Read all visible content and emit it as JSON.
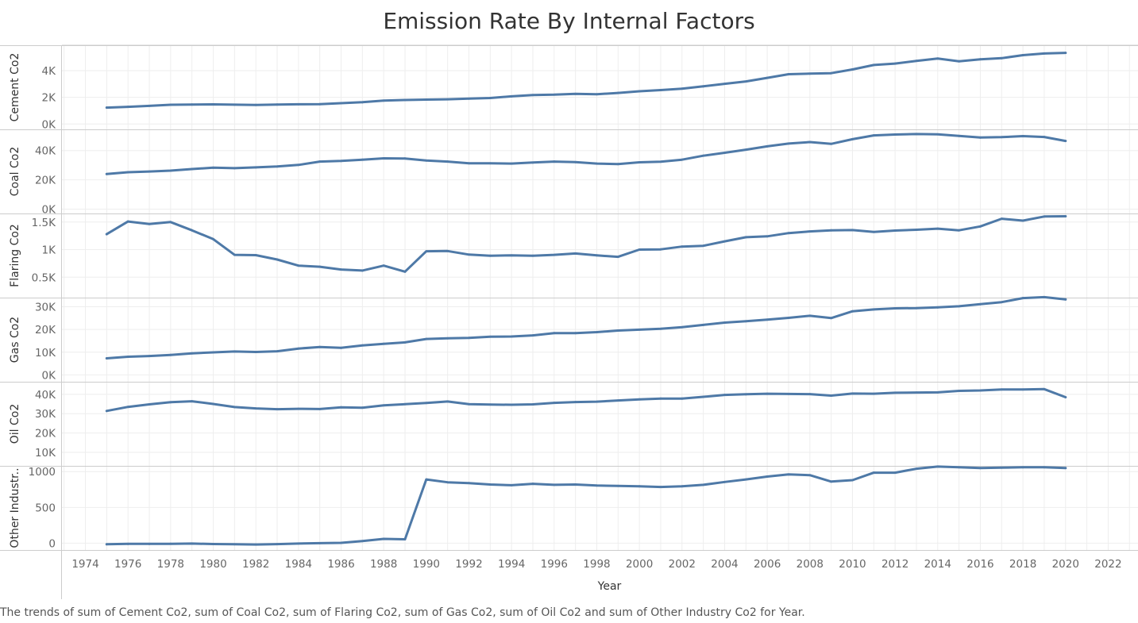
{
  "title": "Emission Rate By Internal Factors",
  "caption": "The trends of sum of Cement Co2, sum of Coal Co2, sum of Flaring Co2, sum of Gas Co2, sum of Oil Co2 and sum of Other Industry Co2 for Year.",
  "colors": {
    "line": "#4e79a7",
    "grid": "#eeeeee",
    "border": "#cccccc"
  },
  "chart_data": {
    "type": "line",
    "xlabel": "Year",
    "x_ticks": [
      1974,
      1976,
      1978,
      1980,
      1982,
      1984,
      1986,
      1988,
      1990,
      1992,
      1994,
      1996,
      1998,
      2000,
      2002,
      2004,
      2006,
      2008,
      2010,
      2012,
      2014,
      2016,
      2018,
      2020,
      2022
    ],
    "xlim": [
      1972.9,
      2023.4
    ],
    "x": [
      1975,
      1976,
      1977,
      1978,
      1979,
      1980,
      1981,
      1982,
      1983,
      1984,
      1985,
      1986,
      1987,
      1988,
      1989,
      1990,
      1991,
      1992,
      1993,
      1994,
      1995,
      1996,
      1997,
      1998,
      1999,
      2000,
      2001,
      2002,
      2003,
      2004,
      2005,
      2006,
      2007,
      2008,
      2009,
      2010,
      2011,
      2012,
      2013,
      2014,
      2015,
      2016,
      2017,
      2018,
      2019,
      2020
    ],
    "series": [
      {
        "name": "Cement Co2",
        "ylim": [
          -400,
          5900
        ],
        "y_ticks": [
          {
            "v": 0,
            "label": "0K"
          },
          {
            "v": 2000,
            "label": "2K"
          },
          {
            "v": 4000,
            "label": "4K"
          }
        ],
        "values": [
          1230,
          1290,
          1360,
          1440,
          1460,
          1470,
          1450,
          1430,
          1460,
          1480,
          1490,
          1560,
          1630,
          1750,
          1800,
          1830,
          1850,
          1900,
          1950,
          2070,
          2170,
          2200,
          2260,
          2230,
          2330,
          2450,
          2540,
          2650,
          2820,
          3010,
          3190,
          3460,
          3730,
          3770,
          3810,
          4090,
          4420,
          4530,
          4730,
          4900,
          4700,
          4850,
          4930,
          5160,
          5280,
          5330
        ]
      },
      {
        "name": "Coal Co2",
        "ylim": [
          -3000,
          54500
        ],
        "y_ticks": [
          {
            "v": 0,
            "label": "0K"
          },
          {
            "v": 20000,
            "label": "20K"
          },
          {
            "v": 40000,
            "label": "40K"
          }
        ],
        "values": [
          24000,
          25200,
          25700,
          26300,
          27400,
          28300,
          28000,
          28500,
          29100,
          30200,
          32500,
          32900,
          33800,
          34700,
          34600,
          33200,
          32500,
          31300,
          31300,
          31100,
          31800,
          32500,
          32100,
          31100,
          30800,
          32000,
          32400,
          33800,
          36500,
          38500,
          40600,
          42900,
          44800,
          45800,
          44600,
          47800,
          50400,
          51000,
          51300,
          51100,
          50000,
          48900,
          49200,
          49900,
          49300,
          46600
        ]
      },
      {
        "name": "Flaring Co2",
        "ylim": [
          130,
          1655
        ],
        "y_ticks": [
          {
            "v": 500,
            "label": "0.5K"
          },
          {
            "v": 1000,
            "label": "1K"
          },
          {
            "v": 1500,
            "label": "1.5K"
          }
        ],
        "values": [
          1280,
          1510,
          1465,
          1500,
          1350,
          1190,
          905,
          900,
          820,
          710,
          690,
          640,
          620,
          710,
          600,
          970,
          975,
          910,
          890,
          895,
          890,
          905,
          930,
          895,
          870,
          1000,
          1005,
          1055,
          1070,
          1150,
          1225,
          1240,
          1300,
          1330,
          1350,
          1355,
          1320,
          1345,
          1360,
          1380,
          1350,
          1420,
          1560,
          1525,
          1600,
          1605
        ]
      },
      {
        "name": "Gas Co2",
        "ylim": [
          -3000,
          34000
        ],
        "y_ticks": [
          {
            "v": 0,
            "label": "0K"
          },
          {
            "v": 10000,
            "label": "10K"
          },
          {
            "v": 20000,
            "label": "20K"
          },
          {
            "v": 30000,
            "label": "30K"
          }
        ],
        "values": [
          7300,
          8000,
          8300,
          8800,
          9500,
          9900,
          10300,
          10100,
          10400,
          11600,
          12300,
          11900,
          13000,
          13700,
          14300,
          15800,
          16100,
          16300,
          16800,
          16900,
          17400,
          18400,
          18400,
          18800,
          19500,
          19900,
          20300,
          21000,
          22000,
          23000,
          23600,
          24300,
          25100,
          26000,
          25000,
          28000,
          28800,
          29300,
          29400,
          29700,
          30200,
          31100,
          32000,
          33800,
          34200,
          33200
        ]
      },
      {
        "name": "Oil Co2",
        "ylim": [
          3000,
          46500
        ],
        "y_ticks": [
          {
            "v": 10000,
            "label": "10K"
          },
          {
            "v": 20000,
            "label": "20K"
          },
          {
            "v": 30000,
            "label": "30K"
          },
          {
            "v": 40000,
            "label": "40K"
          }
        ],
        "values": [
          31400,
          33500,
          34800,
          35900,
          36400,
          35000,
          33400,
          32700,
          32300,
          32500,
          32400,
          33300,
          33100,
          34300,
          34900,
          35500,
          36300,
          34900,
          34700,
          34600,
          34800,
          35600,
          36000,
          36200,
          36800,
          37400,
          37800,
          37800,
          38700,
          39700,
          40000,
          40300,
          40200,
          40100,
          39300,
          40400,
          40300,
          40800,
          40900,
          41000,
          41800,
          42000,
          42500,
          42500,
          42700,
          38500
        ]
      },
      {
        "name": "Other Industr..",
        "ylim": [
          -95,
          1080
        ],
        "y_ticks": [
          {
            "v": 0,
            "label": "0"
          },
          {
            "v": 500,
            "label": "500"
          },
          {
            "v": 1000,
            "label": "1000"
          }
        ],
        "values": [
          -15,
          -10,
          -10,
          -8,
          -5,
          -12,
          -15,
          -18,
          -13,
          -5,
          0,
          5,
          30,
          60,
          55,
          890,
          850,
          840,
          820,
          810,
          830,
          815,
          820,
          805,
          800,
          795,
          785,
          795,
          815,
          855,
          890,
          930,
          960,
          950,
          860,
          880,
          985,
          985,
          1040,
          1070,
          1060,
          1050,
          1055,
          1060,
          1060,
          1050
        ]
      }
    ]
  }
}
